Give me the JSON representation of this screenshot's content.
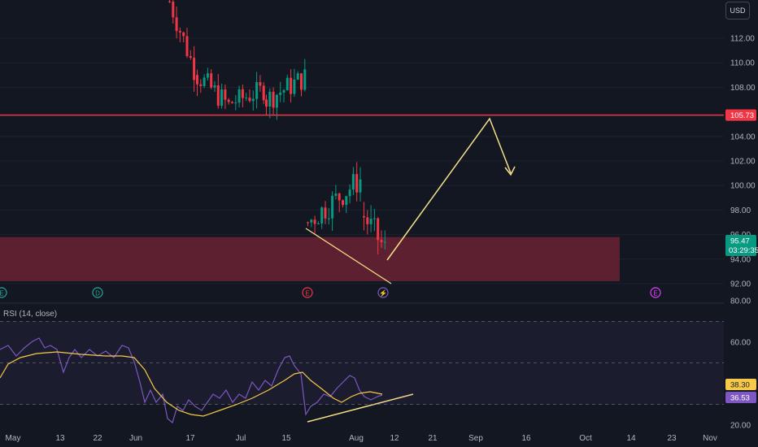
{
  "currency": "USD",
  "price_axis": {
    "ticks": [
      112,
      110,
      108,
      104,
      102,
      100,
      98,
      96,
      94,
      92
    ],
    "tick_labels": [
      "112.00",
      "110.00",
      "108.00",
      "104.00",
      "102.00",
      "100.00",
      "98.00",
      "96.00",
      "94.00",
      "92.00"
    ]
  },
  "resistance_line": {
    "value": 105.73,
    "label": "105.73",
    "color": "#f23645"
  },
  "current_price": {
    "value": 95.47,
    "label": "95.47",
    "countdown": "03:29:35",
    "color": "#089981"
  },
  "support_zone": {
    "low": 92.2,
    "high": 95.8,
    "color": "#6b2232"
  },
  "rsi_panel": {
    "title": "RSI (14, close)",
    "ticks": [
      80,
      60,
      20
    ],
    "tick_labels": [
      "80.00",
      "60.00",
      "20.00"
    ],
    "upper_band": 70,
    "middle_band": 50,
    "lower_band": 30,
    "rsi_value": "36.53",
    "rsi_ma_value": "38.30",
    "rsi_color": "#7e57c2",
    "rsi_ma_color": "#f7c948"
  },
  "x_axis": {
    "labels": [
      "May",
      "13",
      "22",
      "Jun",
      "17",
      "Jul",
      "15",
      "Aug",
      "12",
      "21",
      "Sep",
      "16",
      "Oct",
      "14",
      "23",
      "Nov"
    ]
  },
  "event_markers": [
    {
      "type": "earnings-marker",
      "glyph": "E",
      "color": "#26a69a"
    },
    {
      "type": "dividend-marker",
      "glyph": "D",
      "color": "#26a69a"
    },
    {
      "type": "earnings-marker",
      "glyph": "E",
      "color": "#f23645"
    },
    {
      "type": "split-marker",
      "glyph": "⚡",
      "color": "#7e57c2"
    },
    {
      "type": "earnings-marker",
      "glyph": "E",
      "color": "#e040fb"
    }
  ],
  "chart_data": {
    "type": "candlestick",
    "y_unit": "USD",
    "ylim": [
      91.5,
      115
    ],
    "rsi_ylim": [
      15,
      85
    ],
    "annotations": [
      "resistance line 105.73",
      "support zone 92.2–95.8",
      "projected path up to resistance then down"
    ]
  }
}
